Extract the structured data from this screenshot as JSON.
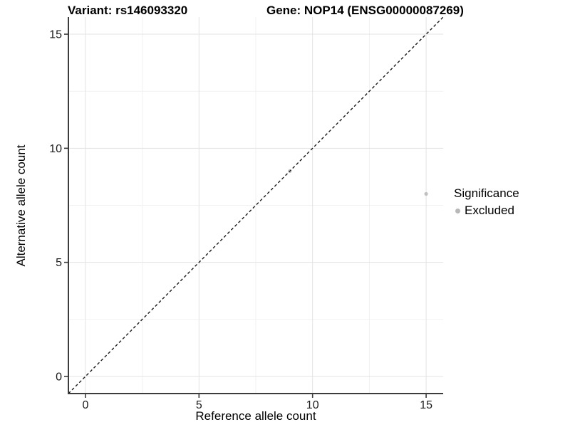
{
  "chart_data": {
    "type": "scatter",
    "title_left": "Variant: rs146093320",
    "title_right": "Gene: NOP14 (ENSG00000087269)",
    "xlabel": "Reference allele count",
    "ylabel": "Alternative allele count",
    "xlim": [
      -0.75,
      15.75
    ],
    "ylim": [
      -0.75,
      15.75
    ],
    "xticks": [
      0,
      5,
      10,
      15
    ],
    "yticks": [
      0,
      5,
      10,
      15
    ],
    "minor_ticks": [
      2.5,
      7.5,
      12.5
    ],
    "grid": "major+minor",
    "identity_line": {
      "style": "dashed",
      "from": [
        -0.75,
        -0.75
      ],
      "to": [
        15.75,
        15.75
      ]
    },
    "points": [
      {
        "x": 9,
        "y": 9,
        "significance": "Excluded"
      },
      {
        "x": 15,
        "y": 8,
        "significance": "Excluded"
      }
    ],
    "legend": {
      "position": "right",
      "title": "Significance",
      "items": [
        {
          "label": "Excluded",
          "color": "#b8b8b8",
          "marker": "circle"
        }
      ]
    },
    "colors": {
      "point": "#c0c0c0",
      "grid_major": "#e3e3e3",
      "grid_minor": "#f1f1f1",
      "axis_line": "#3c3c3c",
      "dashed_line": "#1a1a1a",
      "text": "#1a1a1a"
    }
  }
}
